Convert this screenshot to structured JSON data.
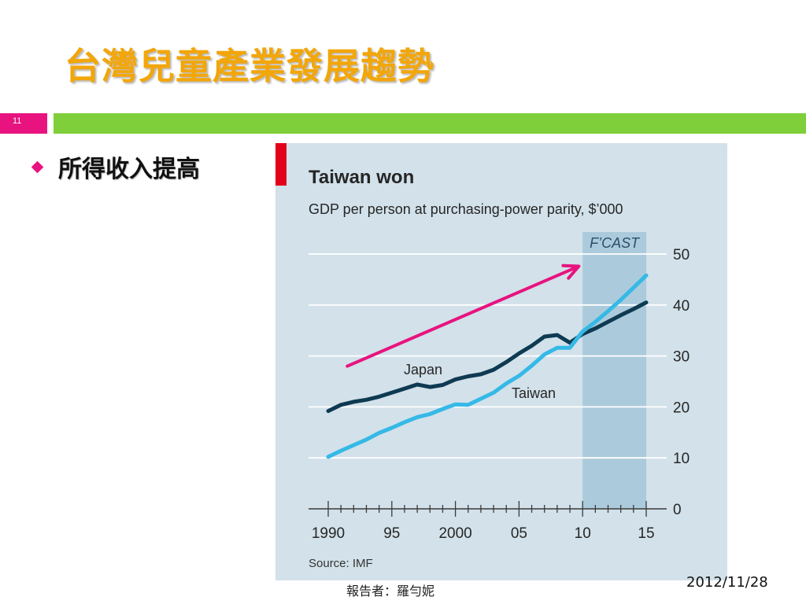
{
  "slide": {
    "title": "台灣兒童產業發展趨勢",
    "number": "11",
    "bullet": "所得收入提高",
    "footer_presenter": "報告者：羅勻妮",
    "footer_date": "2012/11/28",
    "colors": {
      "title": "#f2a60a",
      "accent_pink": "#e8137f",
      "accent_green": "#7fcf3a"
    }
  },
  "chart_data": {
    "type": "line",
    "title": "Taiwan won",
    "subtitle": "GDP per person at purchasing-power parity, $’000",
    "source": "Source: IMF",
    "forecast_label": "F’CAST",
    "forecast_range": [
      2010,
      2015
    ],
    "xlim": [
      1990,
      2015
    ],
    "ylim": [
      0,
      50
    ],
    "x_ticks": [
      {
        "value": 1990,
        "label": "1990"
      },
      {
        "value": 1995,
        "label": "95"
      },
      {
        "value": 2000,
        "label": "2000"
      },
      {
        "value": 2005,
        "label": "05"
      },
      {
        "value": 2010,
        "label": "10"
      },
      {
        "value": 2015,
        "label": "15"
      }
    ],
    "y_ticks": [
      0,
      10,
      20,
      30,
      40,
      50
    ],
    "y_tick_labels": [
      "0",
      "10",
      "20",
      "30",
      "40",
      "50"
    ],
    "grid": true,
    "x": [
      1990,
      1991,
      1992,
      1993,
      1994,
      1995,
      1996,
      1997,
      1998,
      1999,
      2000,
      2001,
      2002,
      2003,
      2004,
      2005,
      2006,
      2007,
      2008,
      2009,
      2010,
      2011,
      2012,
      2013,
      2014,
      2015
    ],
    "series": [
      {
        "name": "Japan",
        "color": "#0e3a52",
        "values": [
          19.2,
          20.4,
          21.0,
          21.4,
          22.0,
          22.8,
          23.6,
          24.4,
          23.9,
          24.3,
          25.4,
          26.0,
          26.4,
          27.3,
          28.8,
          30.5,
          32.0,
          33.8,
          34.1,
          32.6,
          34.3,
          35.4,
          36.7,
          38.0,
          39.2,
          40.5
        ]
      },
      {
        "name": "Taiwan",
        "color": "#35b9e6",
        "values": [
          10.2,
          11.4,
          12.5,
          13.6,
          14.9,
          15.9,
          17.0,
          18.0,
          18.6,
          19.6,
          20.5,
          20.4,
          21.6,
          22.8,
          24.6,
          26.1,
          28.1,
          30.3,
          31.6,
          31.6,
          34.8,
          36.7,
          38.8,
          41.0,
          43.4,
          45.8
        ]
      }
    ],
    "annotation_arrow": {
      "from": [
        1991.5,
        28.0
      ],
      "to": [
        2009.7,
        47.6
      ],
      "color": "#e8137f"
    }
  }
}
